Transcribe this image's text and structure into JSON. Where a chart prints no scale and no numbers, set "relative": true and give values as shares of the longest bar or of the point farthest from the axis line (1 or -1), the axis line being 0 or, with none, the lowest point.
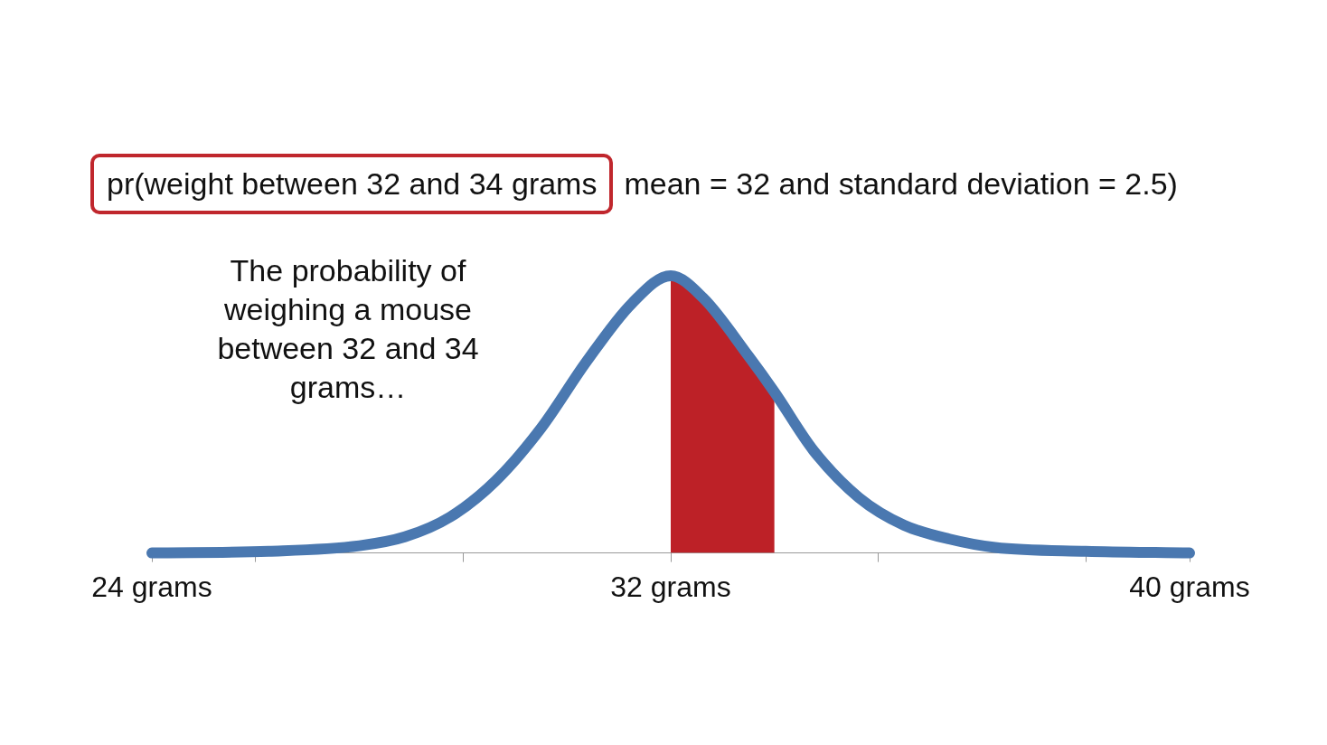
{
  "chart_data": {
    "type": "line",
    "title": "pr(weight between 32 and 34 grams",
    "subtitle": "mean = 32 and standard deviation = 2.5)",
    "annotations": [
      "The probability of weighing a mouse between 32 and 34 grams…"
    ],
    "relative": true,
    "xlim": [
      24,
      40
    ],
    "xticks": [
      {
        "value": 24,
        "label": "24 grams"
      },
      {
        "value": 25.6,
        "label": null
      },
      {
        "value": 28.8,
        "label": null
      },
      {
        "value": 32,
        "label": "32 grams"
      },
      {
        "value": 35.2,
        "label": null
      },
      {
        "value": 38.4,
        "label": null
      },
      {
        "value": 40,
        "label": "40 grams"
      }
    ],
    "grid": false,
    "legend": false,
    "tick_labels": "x",
    "marker": "none",
    "line_style": "solid",
    "series": [
      {
        "type": "area",
        "color": "#bd2127",
        "x": [
          32,
          32.5,
          33.2,
          33.6
        ],
        "values": [
          1,
          0.92,
          0.71,
          0.58
        ]
      },
      {
        "type": "line",
        "color": "#4a78b0",
        "x": [
          24,
          25.8,
          27.2,
          27.9,
          28.6,
          29.3,
          30.0,
          30.7,
          31.4,
          32,
          32.5,
          33.2,
          33.6,
          34.2,
          34.9,
          35.6,
          36.3,
          37.0,
          38.4,
          40
        ],
        "values": [
          0,
          0.006,
          0.026,
          0.058,
          0.13,
          0.26,
          0.45,
          0.69,
          0.9,
          1,
          0.92,
          0.71,
          0.58,
          0.37,
          0.2,
          0.1,
          0.05,
          0.02,
          0.006,
          0
        ]
      }
    ]
  }
}
